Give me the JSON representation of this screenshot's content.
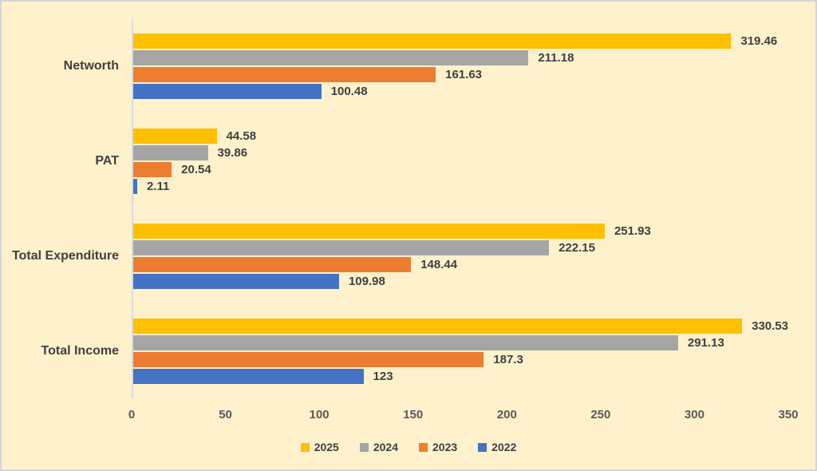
{
  "chart_data": {
    "type": "bar",
    "orientation": "horizontal",
    "title": "",
    "xlabel": "",
    "ylabel": "",
    "categories": [
      "Networth",
      "PAT",
      "Total Expenditure",
      "Total Income"
    ],
    "series": [
      {
        "name": "2025",
        "color": "#FFC000",
        "values": [
          319.46,
          44.58,
          251.93,
          330.53
        ]
      },
      {
        "name": "2024",
        "color": "#A5A5A5",
        "values": [
          211.18,
          39.86,
          222.15,
          291.13
        ]
      },
      {
        "name": "2023",
        "color": "#ED7D31",
        "values": [
          161.63,
          20.54,
          148.44,
          187.3
        ]
      },
      {
        "name": "2022",
        "color": "#4472C4",
        "values": [
          100.48,
          2.11,
          109.98,
          123
        ]
      }
    ],
    "x_ticks": [
      0,
      50,
      100,
      150,
      200,
      250,
      300,
      350
    ],
    "xlim": [
      0,
      350
    ],
    "grid": false,
    "legend_position": "bottom",
    "data_labels": true
  },
  "colors": {
    "background": "#FEF1CB",
    "axis_line": "#DBDBDB",
    "label_text": "#404040",
    "tick_text": "#595959",
    "frame_border": "#D5D5DA"
  }
}
